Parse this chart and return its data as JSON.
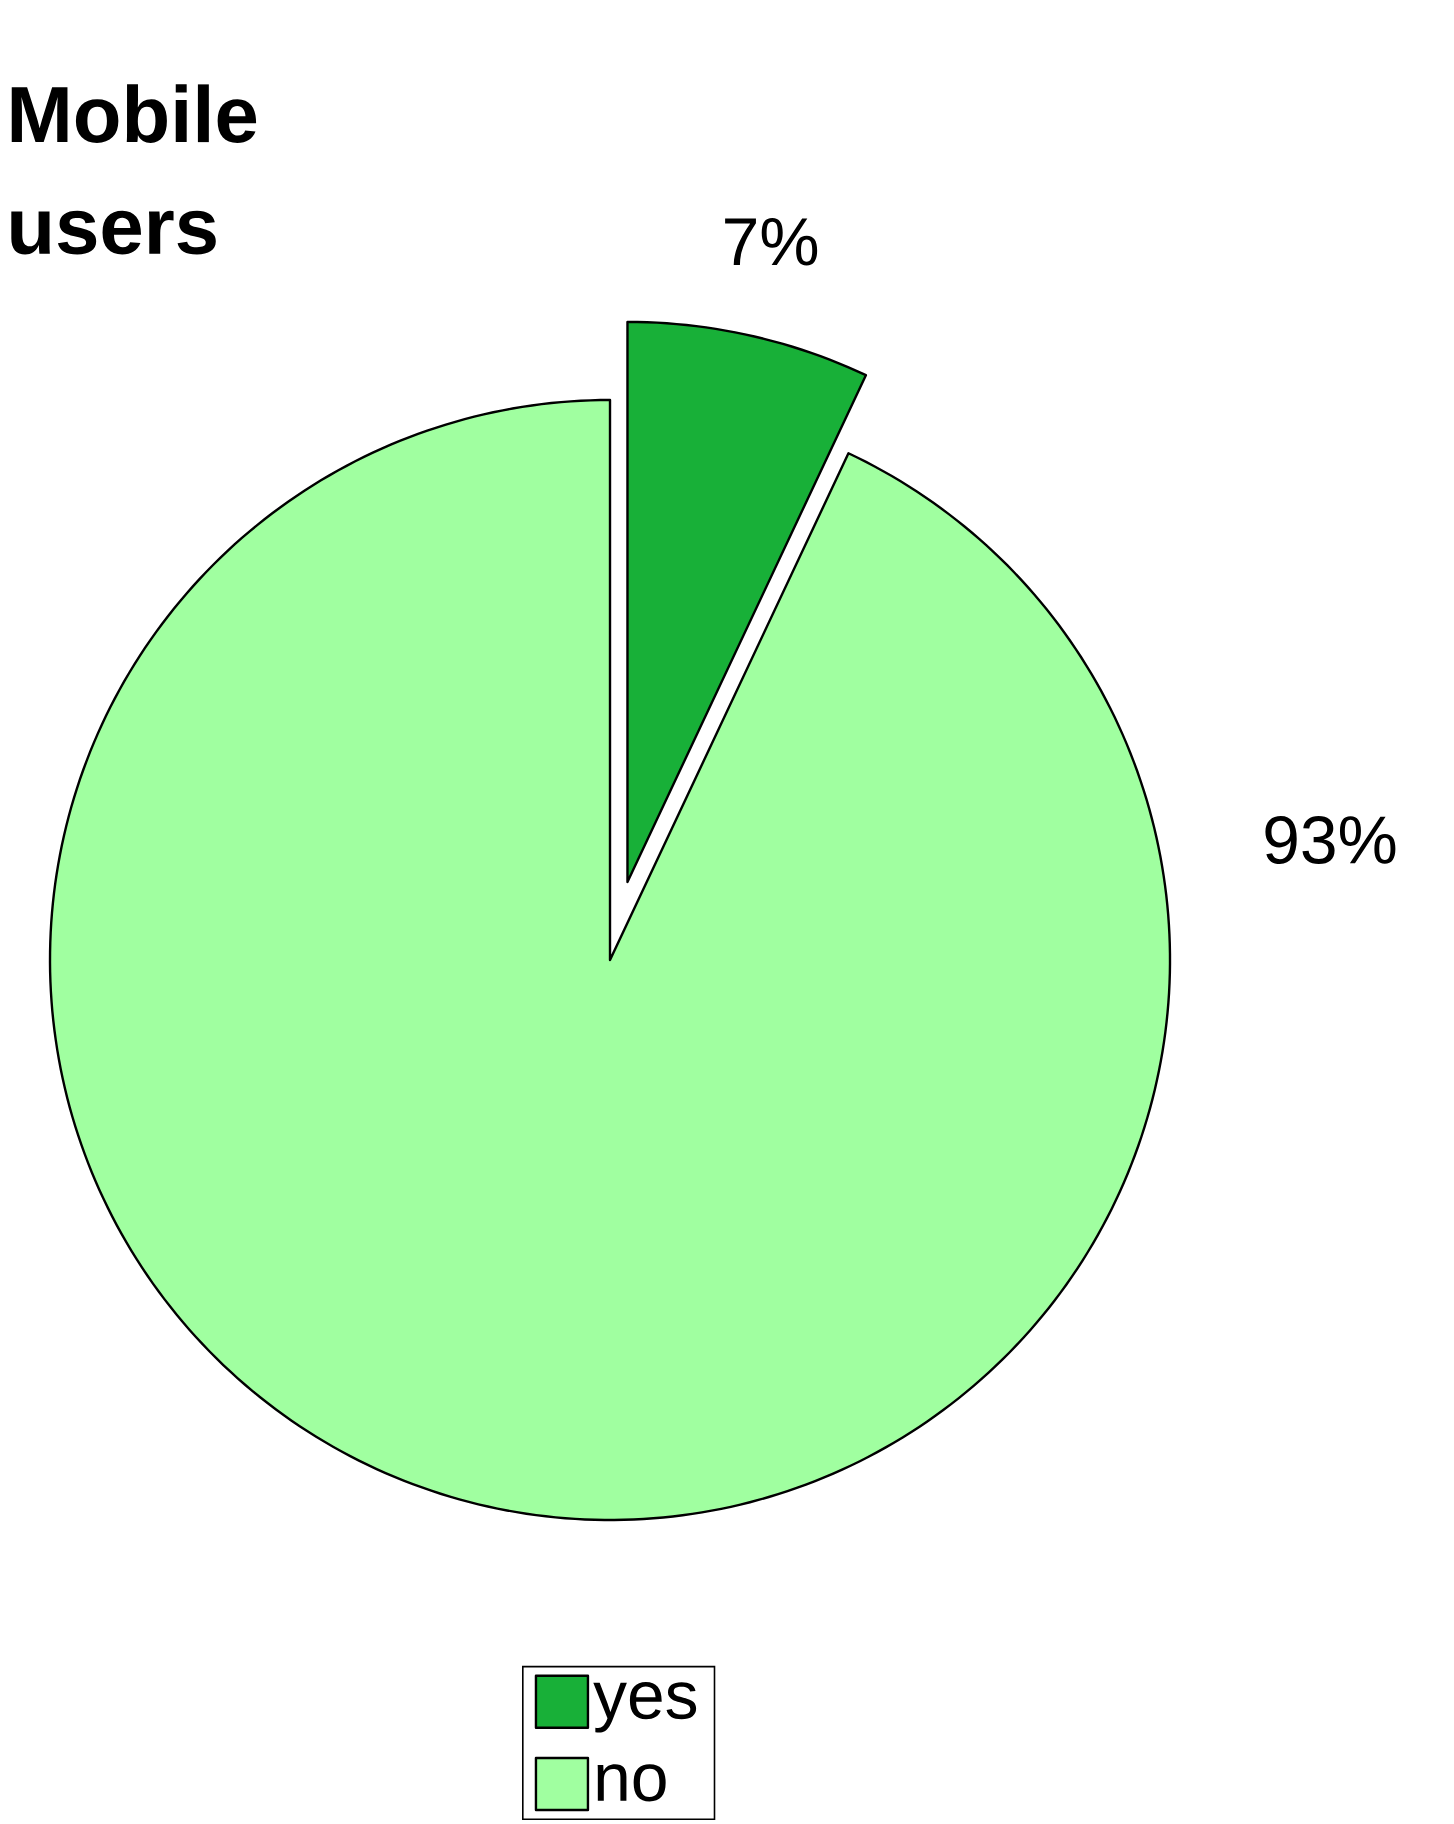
{
  "chart_data": {
    "type": "pie",
    "title": "Mobile users",
    "categories": [
      "yes",
      "no"
    ],
    "values": [
      7,
      93
    ],
    "colors": [
      "#18b038",
      "#a0ffa0"
    ],
    "value_labels": [
      "7%",
      "93%"
    ],
    "legend": "bottom"
  }
}
